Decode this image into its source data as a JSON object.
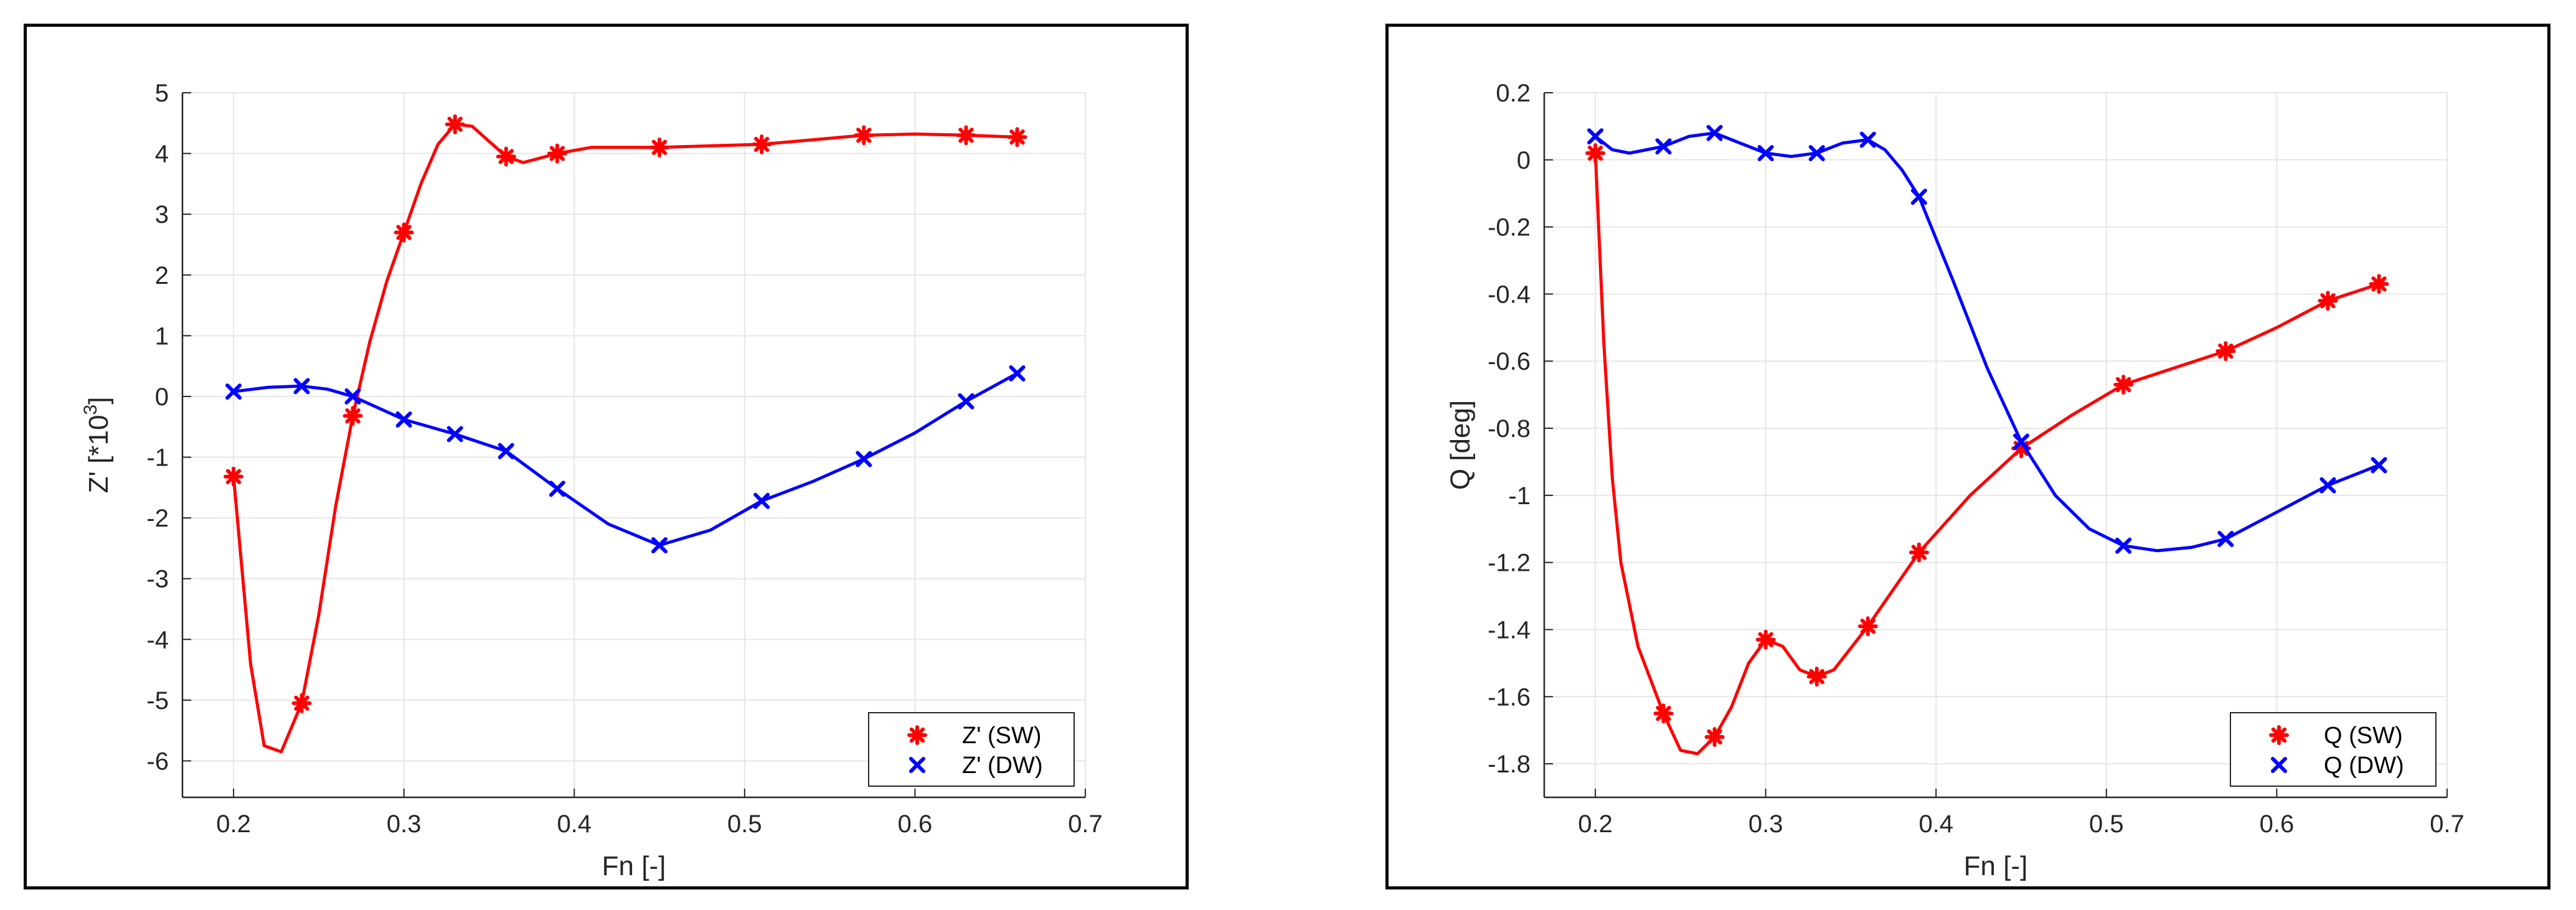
{
  "chart_data": [
    {
      "type": "line",
      "xlabel": "Fn [-]",
      "ylabel": "Z' [*10",
      "ylabel_superscript": "3",
      "ylabel_suffix": "]",
      "xlim": [
        0.17,
        0.7
      ],
      "ylim": [
        -6.6,
        5
      ],
      "xticks": [
        "0.2",
        "0.3",
        "0.4",
        "0.5",
        "0.6",
        "0.7"
      ],
      "yticks": [
        "5",
        "4",
        "3",
        "2",
        "1",
        "0",
        "-1",
        "-2",
        "-3",
        "-4",
        "-5",
        "-6"
      ],
      "grid": true,
      "legend_position": "bottom-right",
      "series": [
        {
          "name": "Z' (SW)",
          "color": "#ff0000",
          "marker": "asterisk",
          "x": [
            0.2,
            0.24,
            0.27,
            0.3,
            0.33,
            0.36,
            0.39,
            0.45,
            0.51,
            0.57,
            0.63,
            0.66
          ],
          "y": [
            -1.32,
            -5.05,
            -0.32,
            2.7,
            4.48,
            3.95,
            4.0,
            4.1,
            4.15,
            4.3,
            4.3,
            4.27
          ],
          "curve": [
            [
              0.2,
              -1.32
            ],
            [
              0.21,
              -4.4
            ],
            [
              0.218,
              -5.75
            ],
            [
              0.228,
              -5.85
            ],
            [
              0.24,
              -5.05
            ],
            [
              0.25,
              -3.6
            ],
            [
              0.26,
              -1.8
            ],
            [
              0.27,
              -0.32
            ],
            [
              0.28,
              0.9
            ],
            [
              0.29,
              1.9
            ],
            [
              0.3,
              2.7
            ],
            [
              0.31,
              3.5
            ],
            [
              0.32,
              4.15
            ],
            [
              0.33,
              4.48
            ],
            [
              0.34,
              4.45
            ],
            [
              0.35,
              4.2
            ],
            [
              0.36,
              3.95
            ],
            [
              0.37,
              3.85
            ],
            [
              0.39,
              4.0
            ],
            [
              0.41,
              4.1
            ],
            [
              0.45,
              4.1
            ],
            [
              0.51,
              4.15
            ],
            [
              0.57,
              4.3
            ],
            [
              0.6,
              4.32
            ],
            [
              0.63,
              4.3
            ],
            [
              0.66,
              4.27
            ]
          ]
        },
        {
          "name": "Z' (DW)",
          "color": "#0000ff",
          "marker": "x",
          "x": [
            0.2,
            0.24,
            0.27,
            0.3,
            0.33,
            0.36,
            0.39,
            0.45,
            0.51,
            0.57,
            0.63,
            0.66
          ],
          "y": [
            0.08,
            0.17,
            0.0,
            -0.38,
            -0.62,
            -0.9,
            -1.52,
            -2.45,
            -1.72,
            -1.03,
            -0.08,
            0.38
          ],
          "curve": [
            [
              0.2,
              0.08
            ],
            [
              0.22,
              0.15
            ],
            [
              0.24,
              0.17
            ],
            [
              0.255,
              0.12
            ],
            [
              0.27,
              0.0
            ],
            [
              0.3,
              -0.38
            ],
            [
              0.33,
              -0.62
            ],
            [
              0.36,
              -0.9
            ],
            [
              0.39,
              -1.52
            ],
            [
              0.42,
              -2.1
            ],
            [
              0.45,
              -2.45
            ],
            [
              0.48,
              -2.2
            ],
            [
              0.51,
              -1.72
            ],
            [
              0.54,
              -1.4
            ],
            [
              0.57,
              -1.03
            ],
            [
              0.6,
              -0.6
            ],
            [
              0.63,
              -0.08
            ],
            [
              0.66,
              0.38
            ]
          ]
        }
      ]
    },
    {
      "type": "line",
      "xlabel": "Fn [-]",
      "ylabel": "Q [deg]",
      "xlim": [
        0.17,
        0.7
      ],
      "ylim": [
        -1.9,
        0.2
      ],
      "xticks": [
        "0.2",
        "0.3",
        "0.4",
        "0.5",
        "0.6",
        "0.7"
      ],
      "yticks": [
        "0.2",
        "0",
        "-0.2",
        "-0.4",
        "-0.6",
        "-0.8",
        "-1",
        "-1.2",
        "-1.4",
        "-1.6",
        "-1.8"
      ],
      "grid": true,
      "legend_position": "bottom-right",
      "series": [
        {
          "name": "Q (SW)",
          "color": "#ff0000",
          "marker": "asterisk",
          "x": [
            0.2,
            0.24,
            0.27,
            0.3,
            0.33,
            0.36,
            0.39,
            0.45,
            0.51,
            0.57,
            0.63,
            0.66
          ],
          "y": [
            0.02,
            -1.65,
            -1.72,
            -1.43,
            -1.54,
            -1.39,
            -1.17,
            -0.86,
            -0.67,
            -0.57,
            -0.42,
            -0.37
          ],
          "curve": [
            [
              0.2,
              0.02
            ],
            [
              0.205,
              -0.55
            ],
            [
              0.21,
              -0.95
            ],
            [
              0.215,
              -1.2
            ],
            [
              0.225,
              -1.45
            ],
            [
              0.24,
              -1.65
            ],
            [
              0.25,
              -1.76
            ],
            [
              0.26,
              -1.77
            ],
            [
              0.27,
              -1.72
            ],
            [
              0.28,
              -1.63
            ],
            [
              0.29,
              -1.5
            ],
            [
              0.3,
              -1.43
            ],
            [
              0.31,
              -1.45
            ],
            [
              0.32,
              -1.52
            ],
            [
              0.33,
              -1.54
            ],
            [
              0.34,
              -1.52
            ],
            [
              0.36,
              -1.39
            ],
            [
              0.39,
              -1.17
            ],
            [
              0.42,
              -1.0
            ],
            [
              0.45,
              -0.86
            ],
            [
              0.48,
              -0.76
            ],
            [
              0.51,
              -0.67
            ],
            [
              0.54,
              -0.62
            ],
            [
              0.57,
              -0.57
            ],
            [
              0.6,
              -0.5
            ],
            [
              0.63,
              -0.42
            ],
            [
              0.66,
              -0.37
            ]
          ]
        },
        {
          "name": "Q (DW)",
          "color": "#0000ff",
          "marker": "x",
          "x": [
            0.2,
            0.24,
            0.27,
            0.3,
            0.33,
            0.36,
            0.39,
            0.45,
            0.51,
            0.57,
            0.63,
            0.66
          ],
          "y": [
            0.07,
            0.04,
            0.08,
            0.02,
            0.02,
            0.06,
            -0.11,
            -0.84,
            -1.15,
            -1.13,
            -0.97,
            -0.91
          ],
          "curve": [
            [
              0.2,
              0.07
            ],
            [
              0.21,
              0.03
            ],
            [
              0.22,
              0.02
            ],
            [
              0.24,
              0.04
            ],
            [
              0.255,
              0.07
            ],
            [
              0.27,
              0.08
            ],
            [
              0.28,
              0.06
            ],
            [
              0.3,
              0.02
            ],
            [
              0.315,
              0.01
            ],
            [
              0.33,
              0.02
            ],
            [
              0.345,
              0.05
            ],
            [
              0.36,
              0.06
            ],
            [
              0.37,
              0.03
            ],
            [
              0.38,
              -0.03
            ],
            [
              0.39,
              -0.11
            ],
            [
              0.41,
              -0.36
            ],
            [
              0.43,
              -0.62
            ],
            [
              0.45,
              -0.84
            ],
            [
              0.47,
              -1.0
            ],
            [
              0.49,
              -1.1
            ],
            [
              0.51,
              -1.15
            ],
            [
              0.53,
              -1.165
            ],
            [
              0.55,
              -1.155
            ],
            [
              0.57,
              -1.13
            ],
            [
              0.6,
              -1.05
            ],
            [
              0.63,
              -0.97
            ],
            [
              0.66,
              -0.91
            ]
          ]
        }
      ]
    }
  ]
}
